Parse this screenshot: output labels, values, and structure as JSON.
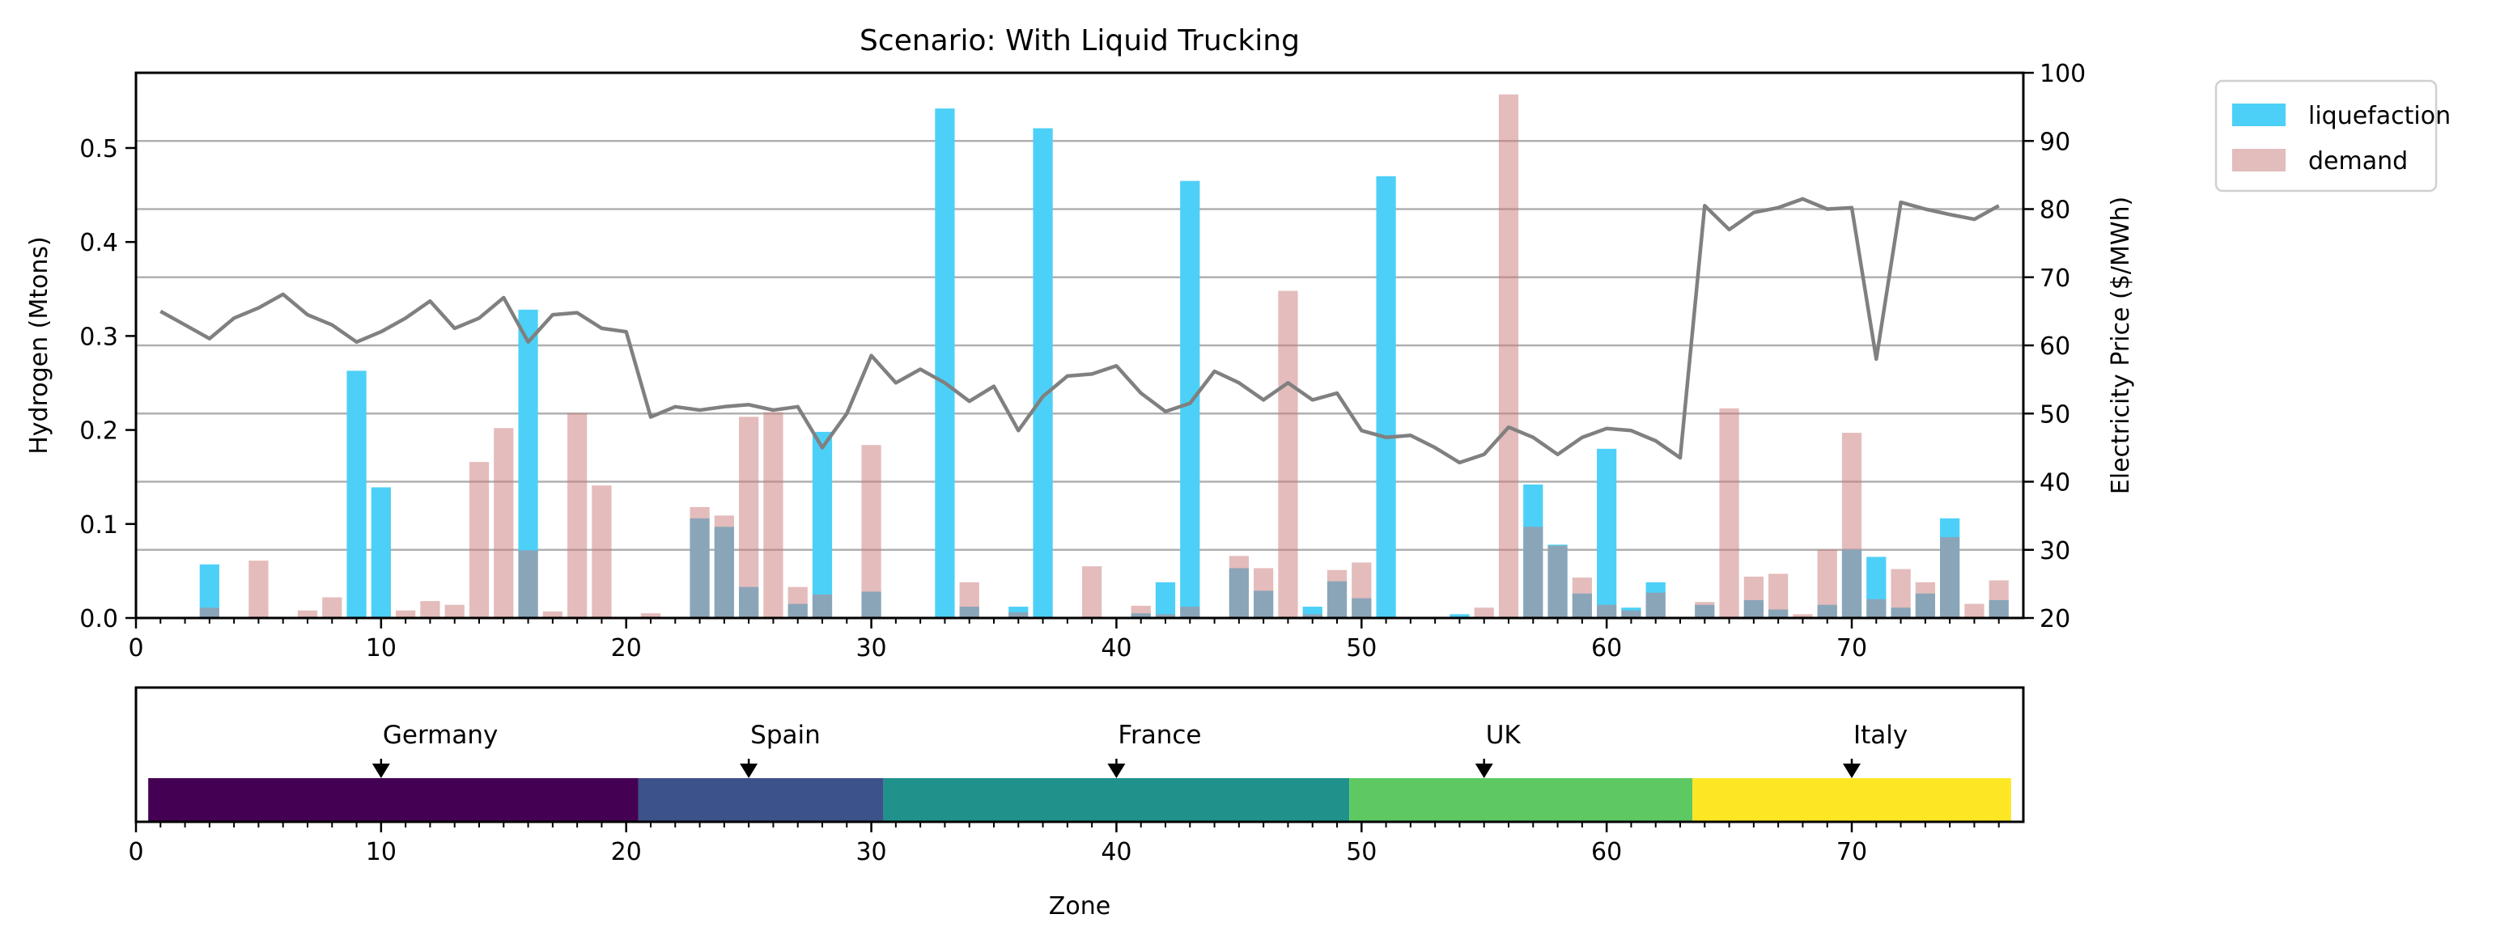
{
  "chart_data": [
    {
      "type": "bar",
      "title": "Scenario: With Liquid Trucking",
      "xlabel": "",
      "ylabel": "Hydrogen (Mtons)",
      "y2label": "Electricity Price ($/MWh)",
      "xlim": [
        0,
        77
      ],
      "ylim": [
        0,
        0.58
      ],
      "y2lim": [
        20,
        100
      ],
      "xticks": [
        0,
        10,
        20,
        30,
        40,
        50,
        60,
        70
      ],
      "yticks": [
        0.0,
        0.1,
        0.2,
        0.3,
        0.4,
        0.5
      ],
      "y2ticks": [
        20,
        30,
        40,
        50,
        60,
        70,
        80,
        90,
        100
      ],
      "ytick_labels": [
        "0.0",
        "0.1",
        "0.2",
        "0.3",
        "0.4",
        "0.5"
      ],
      "grid": "horizontal on secondary axis",
      "legend_position": "outside top-right",
      "series": [
        {
          "name": "liquefaction",
          "color": "#4dd0f7",
          "x": [
            3,
            9,
            10,
            16,
            23,
            24,
            25,
            27,
            28,
            30,
            33,
            34,
            36,
            37,
            41,
            42,
            43,
            45,
            46,
            48,
            49,
            50,
            51,
            54,
            57,
            58,
            59,
            60,
            61,
            62,
            64,
            66,
            67,
            69,
            70,
            71,
            72,
            73,
            74,
            76
          ],
          "values": [
            0.057,
            0.263,
            0.139,
            0.328,
            0.106,
            0.097,
            0.033,
            0.015,
            0.198,
            0.028,
            0.542,
            0.012,
            0.012,
            0.521,
            0.005,
            0.038,
            0.465,
            0.053,
            0.029,
            0.012,
            0.039,
            0.021,
            0.47,
            0.004,
            0.142,
            0.078,
            0.026,
            0.18,
            0.011,
            0.038,
            0.014,
            0.019,
            0.009,
            0.014,
            0.073,
            0.065,
            0.011,
            0.026,
            0.106,
            0.019
          ]
        },
        {
          "name": "demand",
          "color": "#e3bcbc",
          "x": [
            3,
            5,
            7,
            8,
            11,
            12,
            13,
            14,
            15,
            16,
            17,
            18,
            19,
            21,
            23,
            24,
            25,
            26,
            27,
            28,
            30,
            34,
            36,
            39,
            41,
            42,
            43,
            45,
            46,
            47,
            48,
            49,
            50,
            55,
            56,
            57,
            58,
            59,
            60,
            61,
            62,
            64,
            65,
            66,
            67,
            68,
            69,
            70,
            71,
            72,
            73,
            74,
            75,
            76
          ],
          "values": [
            0.011,
            0.061,
            0.008,
            0.022,
            0.008,
            0.018,
            0.014,
            0.166,
            0.202,
            0.072,
            0.007,
            0.218,
            0.141,
            0.005,
            0.118,
            0.109,
            0.214,
            0.219,
            0.033,
            0.025,
            0.184,
            0.038,
            0.006,
            0.055,
            0.013,
            0.004,
            0.012,
            0.066,
            0.053,
            0.348,
            0.004,
            0.051,
            0.059,
            0.011,
            0.557,
            0.097,
            0.077,
            0.043,
            0.014,
            0.008,
            0.027,
            0.017,
            0.223,
            0.044,
            0.047,
            0.004,
            0.073,
            0.197,
            0.02,
            0.052,
            0.038,
            0.086,
            0.015,
            0.04
          ]
        },
        {
          "name": "",
          "axis": "secondary",
          "type": "line",
          "color": "#808080",
          "x": [
            1,
            2,
            3,
            4,
            5,
            6,
            7,
            8,
            9,
            10,
            11,
            12,
            13,
            14,
            15,
            16,
            17,
            18,
            19,
            20,
            21,
            22,
            23,
            24,
            25,
            26,
            27,
            28,
            29,
            30,
            31,
            32,
            33,
            34,
            35,
            36,
            37,
            38,
            39,
            40,
            41,
            42,
            43,
            44,
            45,
            46,
            47,
            48,
            49,
            50,
            51,
            52,
            53,
            54,
            55,
            56,
            57,
            58,
            59,
            60,
            61,
            62,
            63,
            64,
            65,
            66,
            67,
            68,
            69,
            70,
            71,
            72,
            73,
            74,
            75,
            76
          ],
          "values": [
            65.0,
            63.0,
            61.0,
            64.0,
            65.5,
            67.5,
            64.5,
            63.0,
            60.5,
            62.0,
            64.0,
            66.5,
            62.5,
            64.0,
            67.0,
            60.5,
            64.5,
            64.8,
            62.5,
            62.0,
            49.5,
            51.0,
            50.5,
            51.0,
            51.3,
            50.5,
            51.0,
            45.0,
            50.0,
            58.5,
            54.5,
            56.5,
            54.5,
            51.8,
            54.0,
            47.5,
            52.5,
            55.5,
            55.8,
            57.0,
            53.0,
            50.3,
            51.5,
            56.2,
            54.5,
            52.0,
            54.5,
            52.0,
            53.0,
            47.5,
            46.5,
            46.8,
            45.0,
            42.8,
            44.0,
            48.0,
            46.5,
            44.0,
            46.5,
            47.8,
            47.5,
            46.0,
            43.5,
            80.5,
            77.0,
            79.5,
            80.2,
            81.5,
            80.0,
            80.2,
            58.0,
            81.0,
            80.0,
            79.2,
            78.5,
            80.5
          ]
        }
      ],
      "legend": [
        {
          "label": "liquefaction",
          "color": "#4dd0f7"
        },
        {
          "label": "demand",
          "color": "#e3bcbc"
        }
      ]
    },
    {
      "type": "heatmap",
      "xlabel": "Zone",
      "xlim": [
        0,
        77
      ],
      "xticks": [
        0,
        10,
        20,
        30,
        40,
        50,
        60,
        70
      ],
      "segments": [
        {
          "label": "Germany",
          "start": 0.5,
          "end": 20.5,
          "marker": 10,
          "color": "#440154"
        },
        {
          "label": "Spain",
          "start": 20.5,
          "end": 30.5,
          "marker": 25,
          "color": "#3b528b"
        },
        {
          "label": "France",
          "start": 30.5,
          "end": 49.5,
          "marker": 40,
          "color": "#21918c"
        },
        {
          "label": "UK",
          "start": 49.5,
          "end": 63.5,
          "marker": 55,
          "color": "#5ec962"
        },
        {
          "label": "Italy",
          "start": 63.5,
          "end": 76.5,
          "marker": 70,
          "color": "#fde725"
        }
      ]
    }
  ]
}
